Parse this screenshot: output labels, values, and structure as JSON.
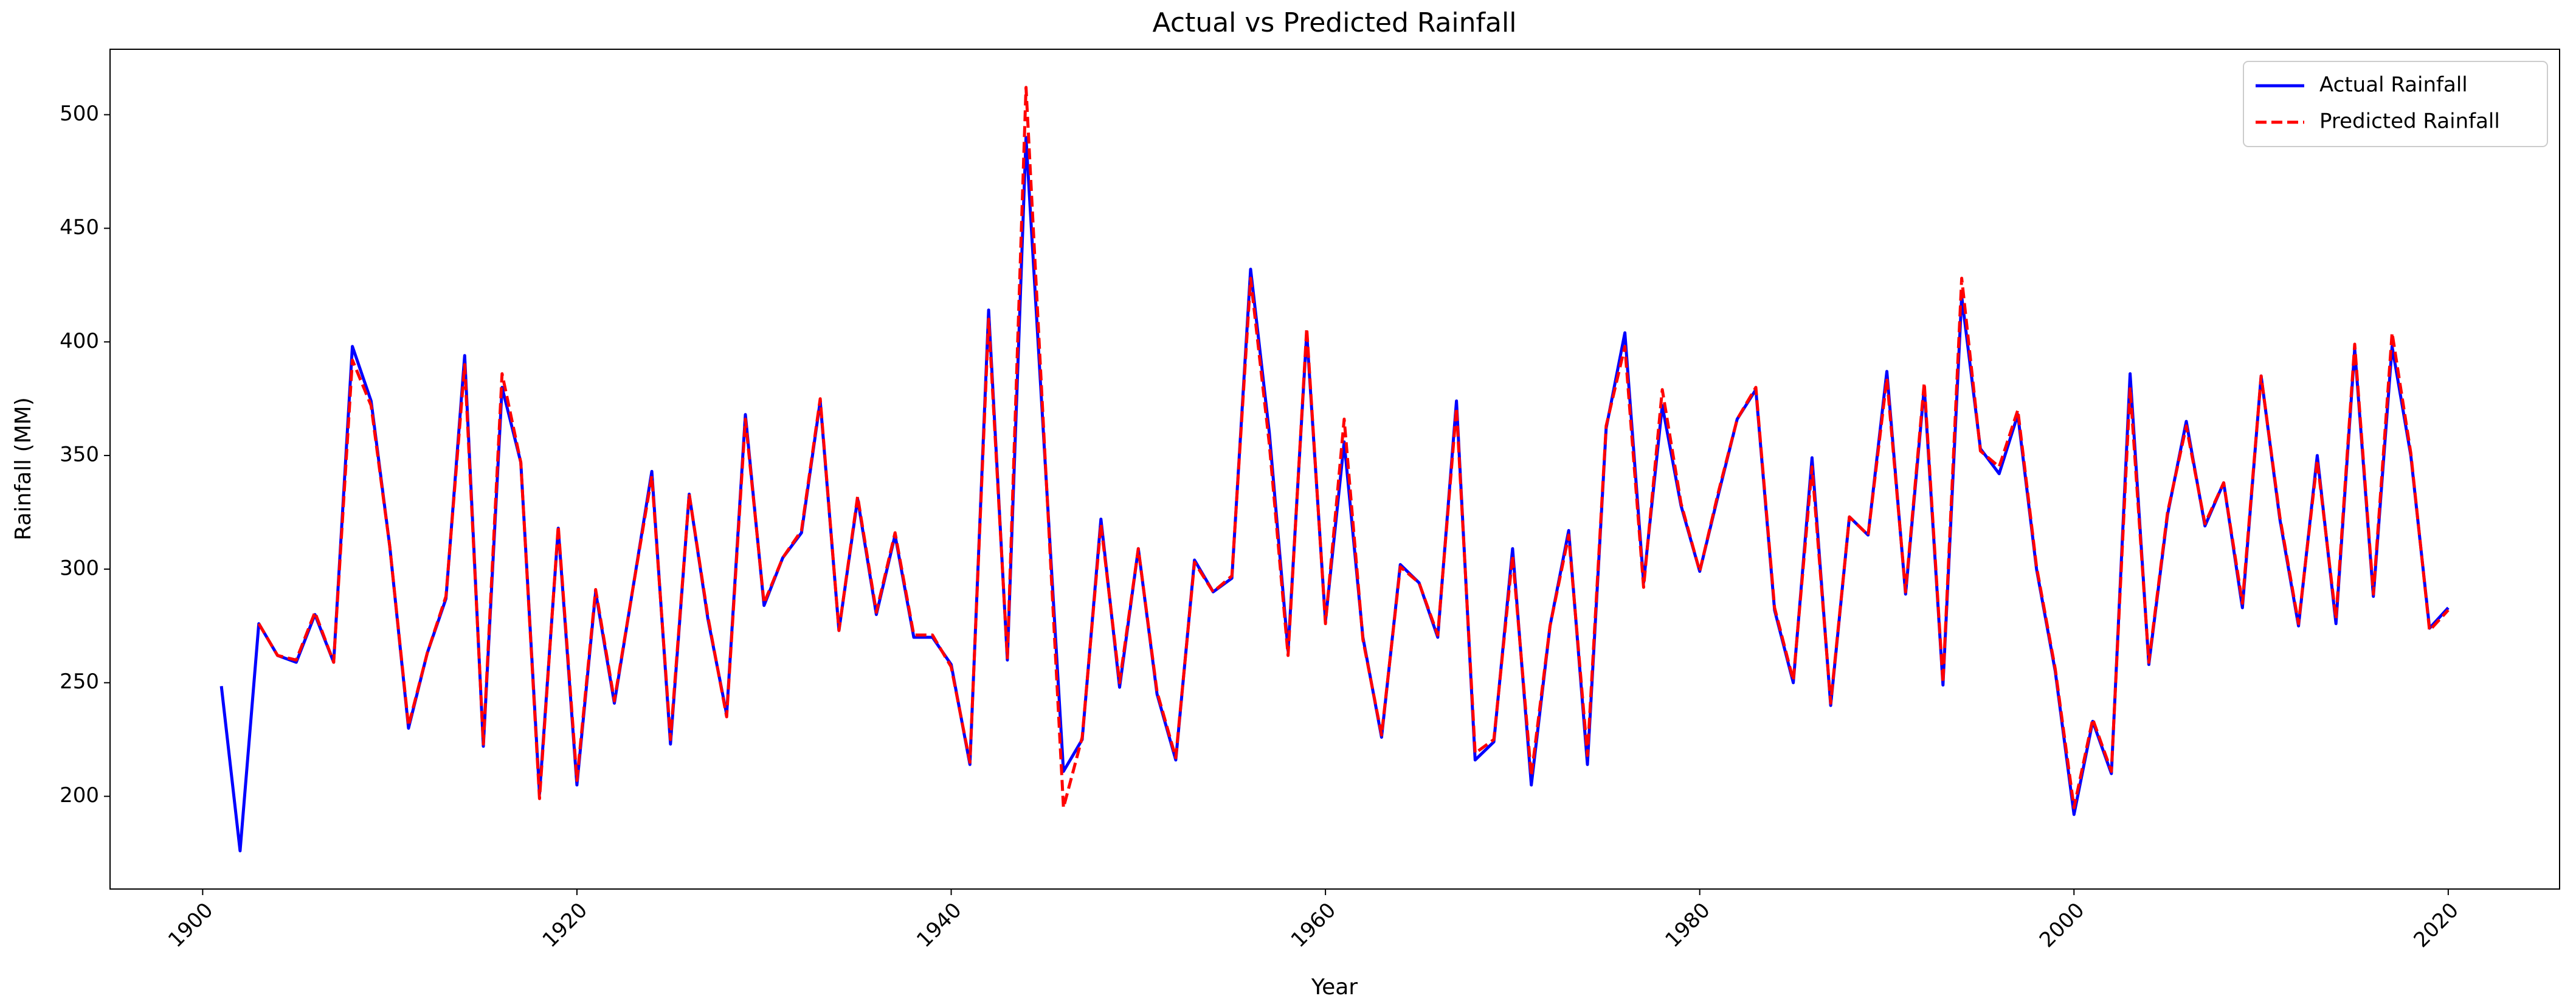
{
  "chart_data": {
    "type": "line",
    "title": "Actual vs Predicted Rainfall",
    "x_label": "Year",
    "y_label": "Rainfall (MM)",
    "x": [
      1901,
      1902,
      1903,
      1904,
      1905,
      1906,
      1907,
      1908,
      1909,
      1910,
      1911,
      1912,
      1913,
      1914,
      1915,
      1916,
      1917,
      1918,
      1919,
      1920,
      1921,
      1922,
      1923,
      1924,
      1925,
      1926,
      1927,
      1928,
      1929,
      1930,
      1931,
      1932,
      1933,
      1934,
      1935,
      1936,
      1937,
      1938,
      1939,
      1940,
      1941,
      1942,
      1943,
      1944,
      1945,
      1946,
      1947,
      1948,
      1949,
      1950,
      1951,
      1952,
      1953,
      1954,
      1955,
      1956,
      1957,
      1958,
      1959,
      1960,
      1961,
      1962,
      1963,
      1964,
      1965,
      1966,
      1967,
      1968,
      1969,
      1970,
      1971,
      1972,
      1973,
      1974,
      1975,
      1976,
      1977,
      1978,
      1979,
      1980,
      1981,
      1982,
      1983,
      1984,
      1985,
      1986,
      1987,
      1988,
      1989,
      1990,
      1991,
      1992,
      1993,
      1994,
      1995,
      1996,
      1997,
      1998,
      1999,
      2000,
      2001,
      2002,
      2003,
      2004,
      2005,
      2006,
      2007,
      2008,
      2009,
      2010,
      2011,
      2012,
      2013,
      2014,
      2015,
      2016,
      2017,
      2018,
      2019,
      2020
    ],
    "series": [
      {
        "name": "Actual Rainfall",
        "color": "#0000ff",
        "dashed": false,
        "values": [
          248.5,
          176,
          276,
          262,
          259,
          280,
          259,
          398,
          374,
          310,
          230,
          263,
          287,
          394,
          222,
          380,
          347,
          201,
          318,
          205,
          290,
          241,
          292,
          343,
          223,
          333,
          278,
          236,
          368,
          284,
          305,
          316,
          374,
          273,
          331,
          280,
          315,
          270,
          270,
          258,
          214,
          414,
          260,
          490,
          350,
          211,
          225,
          322,
          248,
          309,
          245,
          216,
          304,
          290,
          296,
          432,
          360,
          264,
          404,
          277,
          356,
          270,
          226,
          302,
          294,
          270,
          374,
          216,
          224,
          309,
          205,
          275,
          317,
          214,
          362,
          404,
          294,
          372,
          328,
          299,
          333,
          366,
          379,
          282,
          250,
          349,
          240,
          323,
          315,
          387,
          289,
          380,
          249,
          420,
          353,
          342,
          368,
          300,
          255,
          192,
          233,
          210,
          386,
          258,
          324,
          365,
          319,
          338,
          283,
          385,
          322,
          275,
          350,
          276,
          397,
          288,
          398,
          350,
          274,
          283
        ]
      },
      {
        "name": "Predicted Rainfall",
        "color": "#ff0000",
        "dashed": true,
        "values": [
          null,
          null,
          276,
          262,
          260,
          281,
          259,
          392,
          372,
          310,
          231,
          263,
          288,
          390,
          223,
          386,
          347,
          199,
          319,
          207,
          291,
          242,
          292,
          341,
          225,
          333,
          279,
          235,
          366,
          285,
          305,
          317,
          375,
          273,
          332,
          281,
          316,
          271,
          271,
          257,
          215,
          410,
          261,
          512,
          352,
          195,
          226,
          320,
          250,
          309,
          246,
          217,
          303,
          290,
          297,
          428,
          355,
          262,
          406,
          276,
          366,
          269,
          227,
          301,
          294,
          271,
          371,
          219,
          225,
          306,
          209,
          275,
          315,
          218,
          363,
          398,
          292,
          379,
          329,
          299,
          334,
          366,
          380,
          283,
          251,
          345,
          241,
          323,
          315,
          384,
          290,
          382,
          250,
          428,
          352,
          345,
          370,
          301,
          256,
          195,
          234,
          211,
          380,
          259,
          325,
          363,
          320,
          338,
          285,
          385,
          323,
          276,
          348,
          278,
          399,
          289,
          404,
          351,
          273,
          282
        ]
      }
    ],
    "xlim": [
      1895.05,
      2025.95
    ],
    "ylim": [
      159.2,
      528.8
    ],
    "xticks": [
      1900,
      1920,
      1940,
      1960,
      1980,
      2000,
      2020
    ],
    "yticks": [
      200,
      250,
      300,
      350,
      400,
      450,
      500
    ],
    "legend": "upper right"
  }
}
